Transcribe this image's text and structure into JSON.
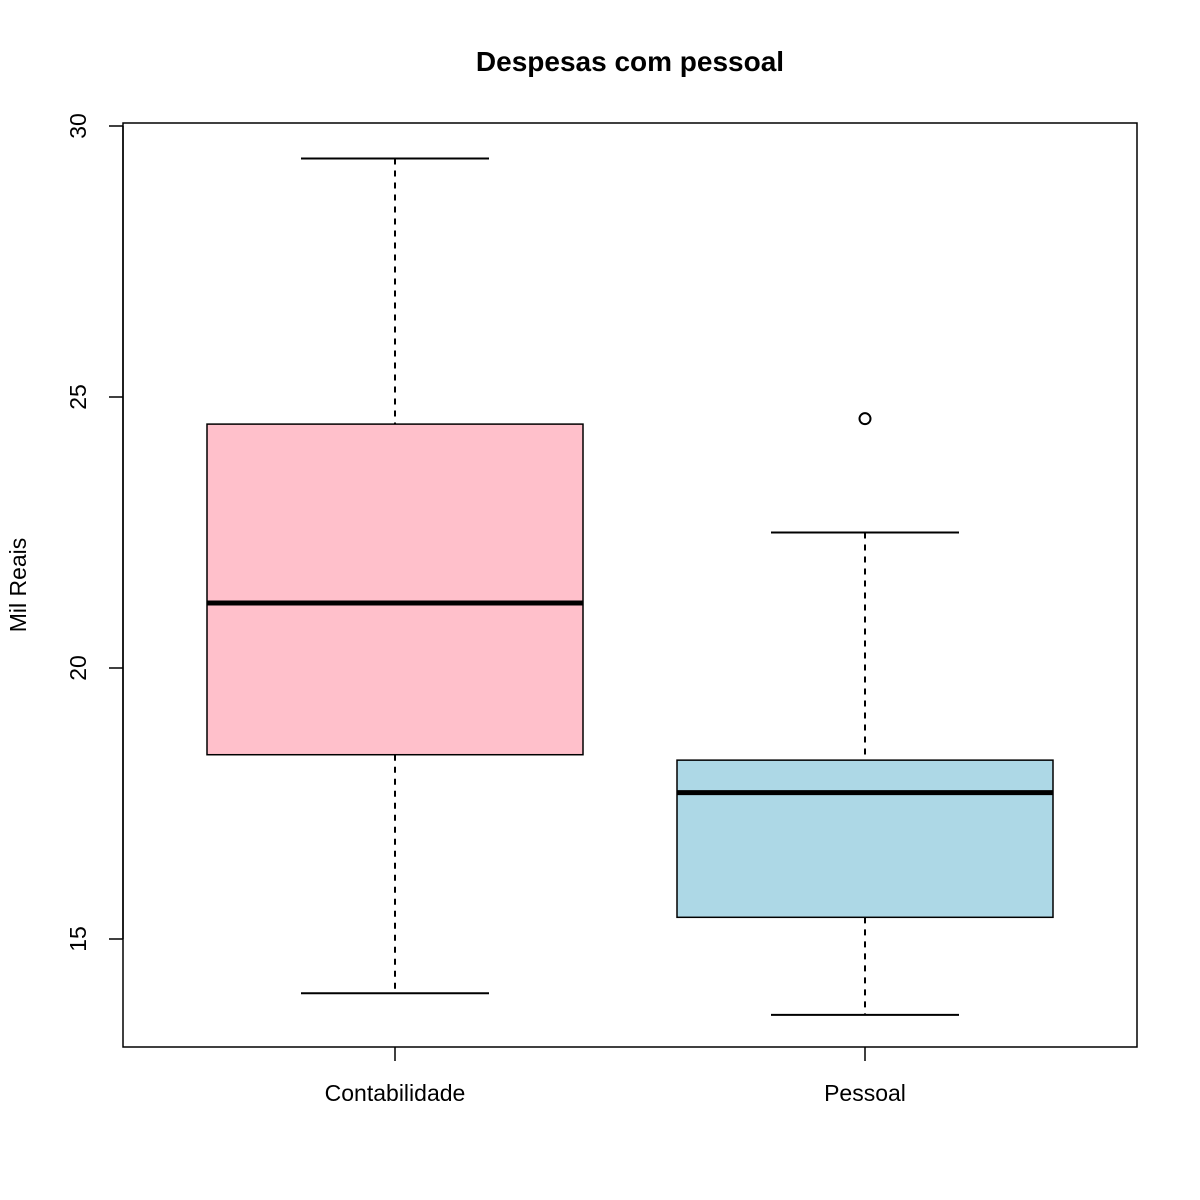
{
  "chart_data": {
    "type": "boxplot",
    "title": "Despesas com pessoal",
    "xlabel": "",
    "ylabel": "Mil Reais",
    "ylim": [
      13,
      30
    ],
    "yticks": [
      15,
      20,
      25,
      30
    ],
    "ytick_labels": [
      "15",
      "20",
      "25",
      "30"
    ],
    "grid": false,
    "legend": "none",
    "categories": [
      "Contabilidade",
      "Pessoal"
    ],
    "series": [
      {
        "category": "Contabilidade",
        "whisker_low": 14.0,
        "q1": 18.4,
        "median": 21.2,
        "q3": 24.5,
        "whisker_high": 29.4,
        "outliers": [],
        "color": "#ffc0cb"
      },
      {
        "category": "Pessoal",
        "whisker_low": 13.6,
        "q1": 15.4,
        "median": 17.7,
        "q3": 18.3,
        "whisker_high": 22.5,
        "outliers": [
          24.6
        ],
        "color": "#add8e6"
      }
    ]
  }
}
